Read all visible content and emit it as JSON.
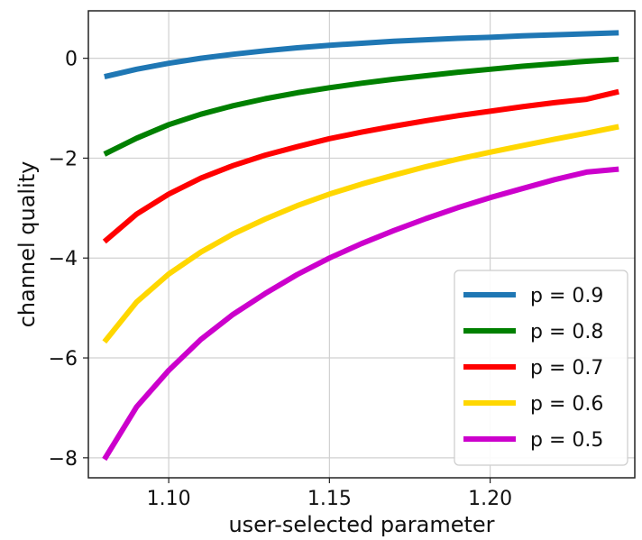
{
  "chart_data": {
    "type": "line",
    "xlabel": "user-selected parameter",
    "ylabel": "channel quality",
    "xlim": [
      1.075,
      1.245
    ],
    "ylim": [
      -8.4,
      0.95
    ],
    "xticks": [
      1.1,
      1.15,
      1.2
    ],
    "xtick_labels": [
      "1.10",
      "1.15",
      "1.20"
    ],
    "yticks": [
      0,
      -2,
      -4,
      -6,
      -8
    ],
    "ytick_labels": [
      "0",
      "−2",
      "−4",
      "−6",
      "−8"
    ],
    "grid": true,
    "legend_position": "bottom-right",
    "x": [
      1.08,
      1.09,
      1.1,
      1.11,
      1.12,
      1.13,
      1.14,
      1.15,
      1.16,
      1.17,
      1.18,
      1.19,
      1.2,
      1.21,
      1.22,
      1.23,
      1.24
    ],
    "series": [
      {
        "name": "p = 0.9",
        "color": "#1f77b4",
        "values": [
          -0.37,
          -0.22,
          -0.1,
          0.0,
          0.08,
          0.15,
          0.21,
          0.26,
          0.3,
          0.34,
          0.37,
          0.4,
          0.42,
          0.45,
          0.47,
          0.49,
          0.51
        ]
      },
      {
        "name": "p = 0.8",
        "color": "#008000",
        "values": [
          -1.92,
          -1.6,
          -1.33,
          -1.12,
          -0.95,
          -0.81,
          -0.69,
          -0.59,
          -0.5,
          -0.42,
          -0.35,
          -0.28,
          -0.22,
          -0.16,
          -0.11,
          -0.06,
          -0.02
        ]
      },
      {
        "name": "p = 0.7",
        "color": "#ff0000",
        "values": [
          -3.67,
          -3.12,
          -2.72,
          -2.4,
          -2.15,
          -1.94,
          -1.77,
          -1.61,
          -1.48,
          -1.36,
          -1.25,
          -1.15,
          -1.06,
          -0.97,
          -0.89,
          -0.82,
          -0.67
        ]
      },
      {
        "name": "p = 0.6",
        "color": "#ffd700",
        "values": [
          -5.68,
          -4.88,
          -4.32,
          -3.88,
          -3.52,
          -3.22,
          -2.95,
          -2.72,
          -2.52,
          -2.34,
          -2.17,
          -2.02,
          -1.88,
          -1.75,
          -1.62,
          -1.5,
          -1.37
        ]
      },
      {
        "name": "p = 0.5",
        "color": "#cc00cc",
        "values": [
          -8.03,
          -6.98,
          -6.25,
          -5.63,
          -5.13,
          -4.71,
          -4.33,
          -4.0,
          -3.71,
          -3.45,
          -3.21,
          -2.99,
          -2.79,
          -2.61,
          -2.43,
          -2.28,
          -2.22
        ]
      }
    ]
  }
}
